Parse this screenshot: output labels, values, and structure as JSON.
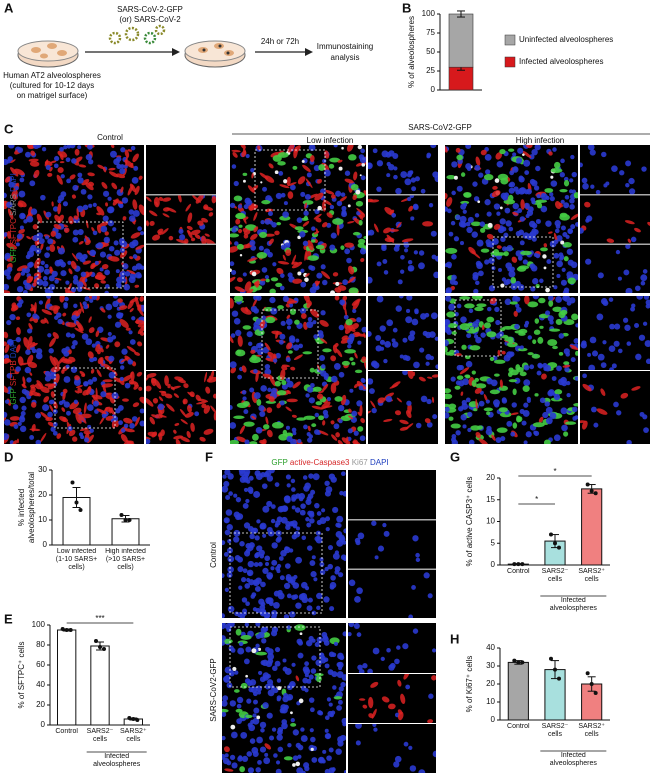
{
  "panel_labels": [
    "A",
    "B",
    "C",
    "D",
    "E",
    "F",
    "G",
    "H"
  ],
  "schematic": {
    "virus_label": [
      "SARS-CoV-2-GFP",
      "(or) SARS-CoV-2"
    ],
    "cells_label": [
      "Human AT2 alveolospheres",
      "(cultured for 10-12 days",
      "on matrigel surface)"
    ],
    "time_label": "24h or 72h",
    "result_label": [
      "Immunostaining",
      "analysis"
    ]
  },
  "panel_c": {
    "group_header": "SARS-CoV2-GFP",
    "column_headers": [
      "Control",
      "Low infection",
      "High infection"
    ],
    "row1_stains": [
      {
        "text": "GFP",
        "color": "#2ca02c"
      },
      {
        "text": "SFTPC",
        "color": "#d62728"
      },
      {
        "text": "SARS",
        "color": "#888888"
      },
      {
        "text": "DAPI",
        "color": "#1f3fbf"
      }
    ],
    "row2_stains": [
      {
        "text": "GFP",
        "color": "#2ca02c"
      },
      {
        "text": "SFTPB",
        "color": "#d62728"
      },
      {
        "text": "DAPI",
        "color": "#1f3fbf"
      }
    ]
  },
  "panel_f": {
    "stains": [
      {
        "text": "GFP",
        "color": "#2ca02c"
      },
      {
        "text": "active-Caspase3",
        "color": "#d62728"
      },
      {
        "text": "Ki67",
        "color": "#999999"
      },
      {
        "text": "DAPI",
        "color": "#1f3fbf"
      }
    ],
    "row_labels": [
      "Control",
      "SARS-CoV2-GFP"
    ]
  },
  "chart_data": [
    {
      "type": "stacked_bar",
      "ylabel": "% of alveolospheres",
      "categories": [
        null
      ],
      "ylim": [
        0,
        100
      ],
      "yticks": [
        0,
        25,
        50,
        75,
        100
      ],
      "series": [
        {
          "name": "Uninfected alveolospheres",
          "color": "#a6a6a6",
          "values": [
            70
          ],
          "errors": [
            4
          ]
        },
        {
          "name": "Infected alveolospheres",
          "color": "#d7191c",
          "values": [
            30
          ],
          "errors": [
            4
          ]
        }
      ]
    },
    {
      "type": "bar",
      "ylabel": [
        "% infected",
        "alveolospheres/total"
      ],
      "categories": [
        "Low infected\n(1-10 SARS+\ncells)",
        "High infected\n(>10 SARS+\ncells)"
      ],
      "values": [
        19,
        10.5
      ],
      "errors": [
        4,
        1.3
      ],
      "points": [
        [
          25,
          17,
          14
        ],
        [
          12,
          10,
          10
        ]
      ],
      "colors": [
        "#ffffff",
        "#ffffff"
      ],
      "ylim": [
        0,
        30
      ],
      "yticks": [
        0,
        10,
        20,
        30
      ]
    },
    {
      "type": "bar",
      "ylabel": "% of SFTPC⁺ cells",
      "categories": [
        "Control",
        "SARS2⁻\ncells",
        "SARS2⁺\ncells"
      ],
      "values": [
        95,
        79,
        6
      ],
      "errors": [
        1,
        4,
        1
      ],
      "points": [
        [
          96,
          95,
          95
        ],
        [
          84,
          78,
          76
        ],
        [
          7,
          6,
          5
        ]
      ],
      "colors": [
        "#ffffff",
        "#ffffff",
        "#ffffff"
      ],
      "ylim": [
        0,
        100
      ],
      "yticks": [
        0,
        20,
        40,
        60,
        80,
        100
      ],
      "annotations": [
        "***"
      ],
      "group_label": "Infected\nalveolospheres"
    },
    {
      "type": "bar",
      "ylabel": "% of active CASP3⁺ cells",
      "categories": [
        "Control",
        "SARS2⁻\ncells",
        "SARS2⁺\ncells"
      ],
      "values": [
        0.2,
        5.5,
        17.5
      ],
      "errors": [
        0.1,
        1.5,
        1
      ],
      "points": [
        [
          0.2,
          0.2,
          0.2
        ],
        [
          7,
          5,
          4
        ],
        [
          18.5,
          17,
          16.5
        ]
      ],
      "colors": [
        "#a6a6a6",
        "#a8e0de",
        "#f08080"
      ],
      "ylim": [
        0,
        20
      ],
      "yticks": [
        0,
        5,
        10,
        15,
        20
      ],
      "annotations": [
        "*",
        "*"
      ],
      "group_label": "Infected\nalveolospheres"
    },
    {
      "type": "bar",
      "ylabel": "% of Ki67⁺ cells",
      "categories": [
        "Control",
        "SARS2⁻\ncells",
        "SARS2⁺\ncells"
      ],
      "values": [
        32,
        28,
        20
      ],
      "errors": [
        1,
        5,
        4
      ],
      "points": [
        [
          33,
          32,
          32
        ],
        [
          34,
          28,
          23
        ],
        [
          26,
          20,
          15
        ]
      ],
      "colors": [
        "#a6a6a6",
        "#a8e0de",
        "#f08080"
      ],
      "ylim": [
        0,
        40
      ],
      "yticks": [
        0,
        10,
        20,
        30,
        40
      ],
      "group_label": "Infected\nalveolospheres"
    }
  ]
}
